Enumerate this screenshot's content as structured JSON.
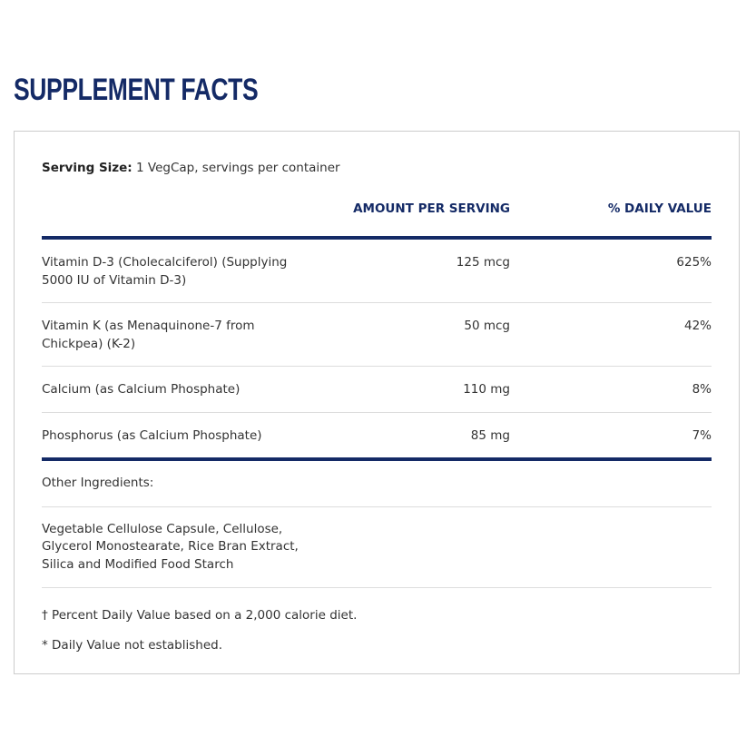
{
  "title": "SUPPLEMENT FACTS",
  "serving": {
    "label": "Serving Size:",
    "value": "1 VegCap, servings per container"
  },
  "table": {
    "headers": [
      "AMOUNT PER SERVING",
      "% DAILY VALUE"
    ],
    "rows": [
      [
        "Vitamin D-3 (Cholecalciferol) (Supplying 5000 IU of Vitamin D-3)",
        "125 mcg",
        "625%"
      ],
      [
        "Vitamin K (as Menaquinone-7 from Chickpea) (K-2)",
        "50 mcg",
        "42%"
      ],
      [
        "Calcium (as Calcium Phosphate)",
        "110 mg",
        "8%"
      ],
      [
        "Phosphorus (as Calcium Phosphate)",
        "85 mg",
        "7%"
      ]
    ]
  },
  "other": {
    "label": "Other Ingredients:",
    "text": "Vegetable Cellulose Capsule, Cellulose, Glycerol Monostearate, Rice Bran Extract, Silica and Modified Food Starch"
  },
  "footnotes": [
    "† Percent Daily Value based on a 2,000 calorie diet.",
    "* Daily Value not established."
  ]
}
